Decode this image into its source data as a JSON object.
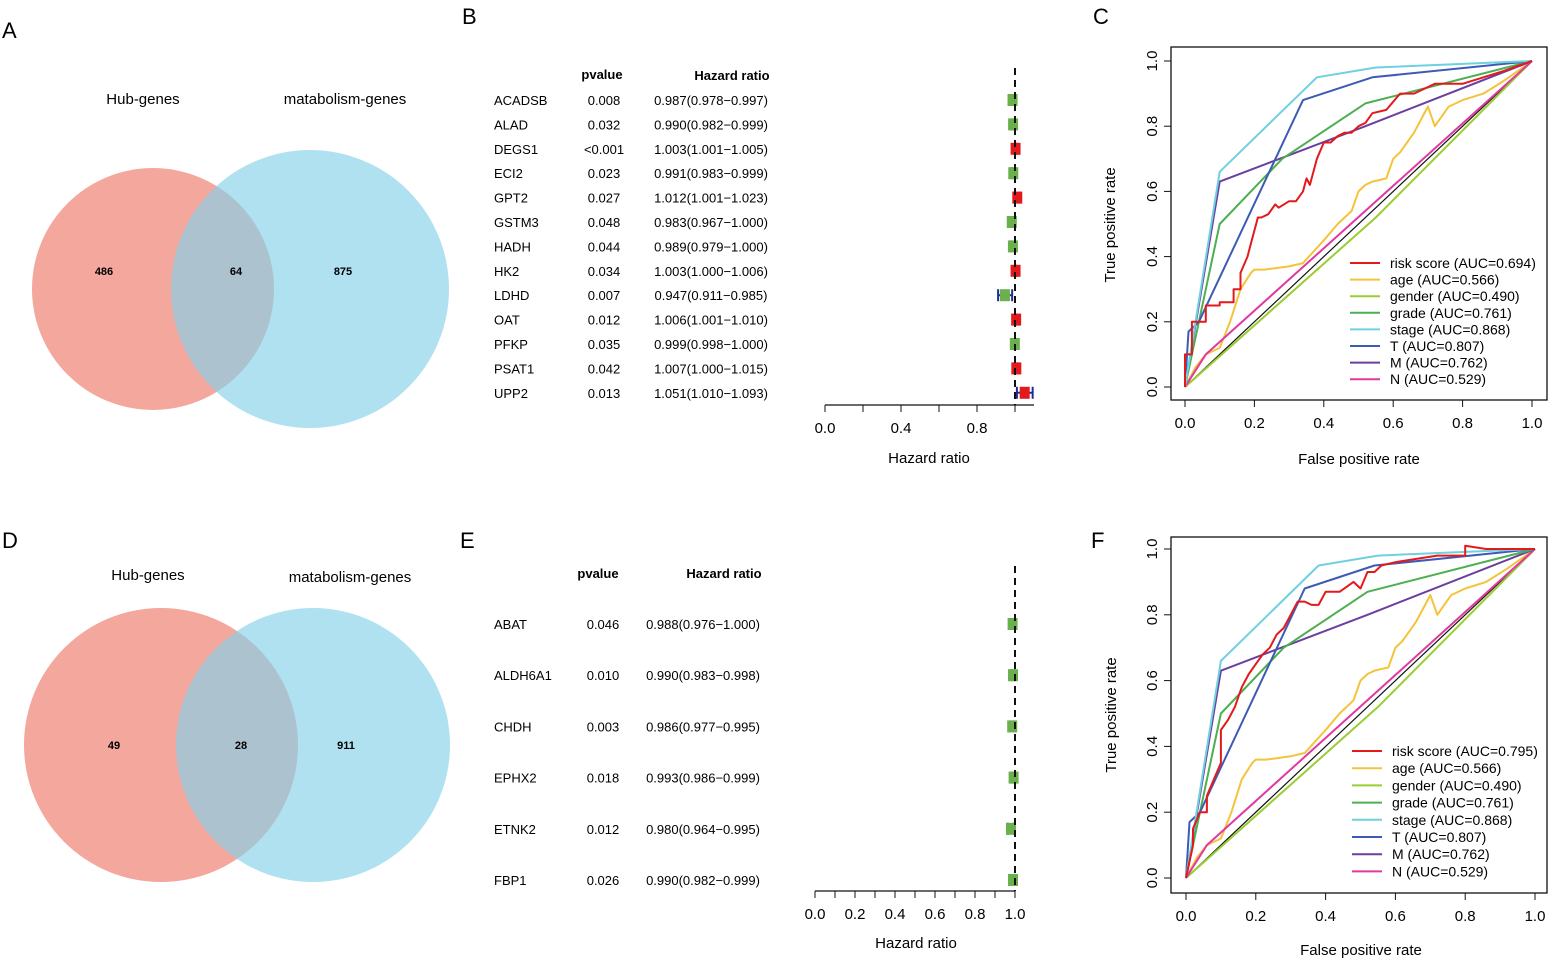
{
  "colors": {
    "venn_left": "#f08a7c",
    "venn_right": "#85d1e8",
    "protective": "#6ab04c",
    "risk": "#e31a1c",
    "ci_line": "#1f2f8f",
    "roc_risk": "#e31a1c",
    "roc_age": "#f5c33b",
    "roc_gender": "#9acd32",
    "roc_grade": "#4caf50",
    "roc_stage": "#6fd0e0",
    "roc_T": "#3d5bb5",
    "roc_M": "#6a3fa0",
    "roc_N": "#e03aa0"
  },
  "chart_data": [
    {
      "panel": "A",
      "type": "venn",
      "sets": [
        "Hub-genes",
        "matabolism-genes"
      ],
      "left_only": "486",
      "overlap": "64",
      "right_only": "875"
    },
    {
      "panel": "B",
      "type": "forest",
      "col_pvalue": "pvalue",
      "col_hr": "Hazard ratio",
      "xlabel": "Hazard ratio",
      "xlim": [
        0,
        1.1
      ],
      "ref_line": 1,
      "ticks": [
        "0.0",
        "0.4",
        "0.8"
      ],
      "tick_values": [
        0,
        0.4,
        0.8
      ],
      "rows": [
        {
          "gene": "ACADSB",
          "pvalue": "0.008",
          "hr_text": "0.987(0.978−0.997)",
          "hr": 0.987,
          "lo": 0.978,
          "hi": 0.997
        },
        {
          "gene": "ALAD",
          "pvalue": "0.032",
          "hr_text": "0.990(0.982−0.999)",
          "hr": 0.99,
          "lo": 0.982,
          "hi": 0.999
        },
        {
          "gene": "DEGS1",
          "pvalue": "<0.001",
          "hr_text": "1.003(1.001−1.005)",
          "hr": 1.003,
          "lo": 1.001,
          "hi": 1.005
        },
        {
          "gene": "ECI2",
          "pvalue": "0.023",
          "hr_text": "0.991(0.983−0.999)",
          "hr": 0.991,
          "lo": 0.983,
          "hi": 0.999
        },
        {
          "gene": "GPT2",
          "pvalue": "0.027",
          "hr_text": "1.012(1.001−1.023)",
          "hr": 1.012,
          "lo": 1.001,
          "hi": 1.023
        },
        {
          "gene": "GSTM3",
          "pvalue": "0.048",
          "hr_text": "0.983(0.967−1.000)",
          "hr": 0.983,
          "lo": 0.967,
          "hi": 1.0
        },
        {
          "gene": "HADH",
          "pvalue": "0.044",
          "hr_text": "0.989(0.979−1.000)",
          "hr": 0.989,
          "lo": 0.979,
          "hi": 1.0
        },
        {
          "gene": "HK2",
          "pvalue": "0.034",
          "hr_text": "1.003(1.000−1.006)",
          "hr": 1.003,
          "lo": 1.0,
          "hi": 1.006
        },
        {
          "gene": "LDHD",
          "pvalue": "0.007",
          "hr_text": "0.947(0.911−0.985)",
          "hr": 0.947,
          "lo": 0.911,
          "hi": 0.985
        },
        {
          "gene": "OAT",
          "pvalue": "0.012",
          "hr_text": "1.006(1.001−1.010)",
          "hr": 1.006,
          "lo": 1.001,
          "hi": 1.01
        },
        {
          "gene": "PFKP",
          "pvalue": "0.035",
          "hr_text": "0.999(0.998−1.000)",
          "hr": 0.999,
          "lo": 0.998,
          "hi": 1.0
        },
        {
          "gene": "PSAT1",
          "pvalue": "0.042",
          "hr_text": "1.007(1.000−1.015)",
          "hr": 1.007,
          "lo": 1.0,
          "hi": 1.015
        },
        {
          "gene": "UPP2",
          "pvalue": "0.013",
          "hr_text": "1.051(1.010−1.093)",
          "hr": 1.051,
          "lo": 1.01,
          "hi": 1.093
        }
      ]
    },
    {
      "panel": "C",
      "type": "line",
      "xlabel": "False positive rate",
      "ylabel": "True positive rate",
      "xlim": [
        0,
        1
      ],
      "ylim": [
        0,
        1
      ],
      "ticks": [
        "0.0",
        "0.2",
        "0.4",
        "0.6",
        "0.8",
        "1.0"
      ],
      "tick_values": [
        0,
        0.2,
        0.4,
        0.6,
        0.8,
        1.0
      ],
      "series": [
        {
          "key": "risk",
          "name": "risk score (AUC=0.694)",
          "x": [
            0,
            0,
            0.02,
            0.02,
            0.06,
            0.06,
            0.1,
            0.1,
            0.14,
            0.14,
            0.16,
            0.16,
            0.18,
            0.19,
            0.2,
            0.21,
            0.22,
            0.24,
            0.26,
            0.27,
            0.3,
            0.32,
            0.34,
            0.35,
            0.36,
            0.38,
            0.4,
            0.42,
            0.44,
            0.46,
            0.48,
            0.5,
            0.52,
            0.54,
            0.58,
            0.62,
            0.66,
            0.72,
            0.8,
            0.92,
            1.0
          ],
          "y": [
            0,
            0.1,
            0.1,
            0.2,
            0.2,
            0.25,
            0.25,
            0.26,
            0.26,
            0.3,
            0.3,
            0.35,
            0.4,
            0.44,
            0.48,
            0.52,
            0.52,
            0.53,
            0.56,
            0.55,
            0.57,
            0.57,
            0.6,
            0.64,
            0.62,
            0.7,
            0.75,
            0.75,
            0.77,
            0.78,
            0.78,
            0.8,
            0.81,
            0.84,
            0.85,
            0.9,
            0.9,
            0.93,
            0.93,
            0.97,
            1.0
          ]
        },
        {
          "key": "age",
          "name": "age (AUC=0.566)",
          "x": [
            0,
            0.03,
            0.06,
            0.1,
            0.13,
            0.16,
            0.19,
            0.2,
            0.23,
            0.3,
            0.34,
            0.4,
            0.44,
            0.48,
            0.5,
            0.52,
            0.54,
            0.58,
            0.6,
            0.62,
            0.66,
            0.7,
            0.72,
            0.76,
            0.8,
            0.86,
            0.92,
            1.0
          ],
          "y": [
            0,
            0.06,
            0.1,
            0.12,
            0.2,
            0.3,
            0.35,
            0.36,
            0.36,
            0.37,
            0.38,
            0.45,
            0.5,
            0.54,
            0.6,
            0.62,
            0.63,
            0.64,
            0.7,
            0.72,
            0.78,
            0.86,
            0.8,
            0.86,
            0.88,
            0.9,
            0.94,
            1.0
          ]
        },
        {
          "key": "gender",
          "name": "gender (AUC=0.490)",
          "x": [
            0,
            0.55,
            1.0
          ],
          "y": [
            0,
            0.52,
            1.0
          ]
        },
        {
          "key": "grade",
          "name": "grade (AUC=0.761)",
          "x": [
            0,
            0.1,
            0.28,
            0.52,
            1.0
          ],
          "y": [
            0,
            0.5,
            0.7,
            0.87,
            1.0
          ]
        },
        {
          "key": "stage",
          "name": "stage (AUC=0.868)",
          "x": [
            0,
            0.1,
            0.38,
            0.55,
            1.0
          ],
          "y": [
            0,
            0.66,
            0.95,
            0.98,
            1.0
          ]
        },
        {
          "key": "T",
          "name": "T (AUC=0.807)",
          "x": [
            0,
            0.01,
            0.04,
            0.34,
            0.54,
            1.0
          ],
          "y": [
            0,
            0.17,
            0.2,
            0.88,
            0.95,
            1.0
          ]
        },
        {
          "key": "M",
          "name": "M (AUC=0.762)",
          "x": [
            0,
            0.1,
            0.52,
            1.0
          ],
          "y": [
            0,
            0.63,
            0.8,
            1.0
          ]
        },
        {
          "key": "N",
          "name": "N (AUC=0.529)",
          "x": [
            0,
            0.06,
            1.0
          ],
          "y": [
            0,
            0.1,
            1.0
          ]
        }
      ]
    },
    {
      "panel": "D",
      "type": "venn",
      "sets": [
        "Hub-genes",
        "matabolism-genes"
      ],
      "left_only": "49",
      "overlap": "28",
      "right_only": "911"
    },
    {
      "panel": "E",
      "type": "forest",
      "col_pvalue": "pvalue",
      "col_hr": "Hazard ratio",
      "xlabel": "Hazard ratio",
      "xlim": [
        0,
        1
      ],
      "ref_line": 1,
      "ticks": [
        "0.0",
        "0.2",
        "0.4",
        "0.6",
        "0.8",
        "1.0"
      ],
      "tick_values": [
        0,
        0.2,
        0.4,
        0.6,
        0.8,
        1.0
      ],
      "rows": [
        {
          "gene": "ABAT",
          "pvalue": "0.046",
          "hr_text": "0.988(0.976−1.000)",
          "hr": 0.988,
          "lo": 0.976,
          "hi": 1.0
        },
        {
          "gene": "ALDH6A1",
          "pvalue": "0.010",
          "hr_text": "0.990(0.983−0.998)",
          "hr": 0.99,
          "lo": 0.983,
          "hi": 0.998
        },
        {
          "gene": "CHDH",
          "pvalue": "0.003",
          "hr_text": "0.986(0.977−0.995)",
          "hr": 0.986,
          "lo": 0.977,
          "hi": 0.995
        },
        {
          "gene": "EPHX2",
          "pvalue": "0.018",
          "hr_text": "0.993(0.986−0.999)",
          "hr": 0.993,
          "lo": 0.986,
          "hi": 0.999
        },
        {
          "gene": "ETNK2",
          "pvalue": "0.012",
          "hr_text": "0.980(0.964−0.995)",
          "hr": 0.98,
          "lo": 0.964,
          "hi": 0.995
        },
        {
          "gene": "FBP1",
          "pvalue": "0.026",
          "hr_text": "0.990(0.982−0.999)",
          "hr": 0.99,
          "lo": 0.982,
          "hi": 0.999
        }
      ]
    },
    {
      "panel": "F",
      "type": "line",
      "xlabel": "False positive rate",
      "ylabel": "True positive rate",
      "xlim": [
        0,
        1
      ],
      "ylim": [
        0,
        1
      ],
      "ticks": [
        "0.0",
        "0.2",
        "0.4",
        "0.6",
        "0.8",
        "1.0"
      ],
      "tick_values": [
        0,
        0.2,
        0.4,
        0.6,
        0.8,
        1.0
      ],
      "series": [
        {
          "key": "risk",
          "name": "risk score (AUC=0.795)",
          "x": [
            0,
            0.02,
            0.02,
            0.04,
            0.06,
            0.06,
            0.08,
            0.1,
            0.1,
            0.12,
            0.13,
            0.14,
            0.15,
            0.16,
            0.18,
            0.2,
            0.22,
            0.24,
            0.26,
            0.28,
            0.3,
            0.32,
            0.34,
            0.36,
            0.38,
            0.4,
            0.44,
            0.48,
            0.5,
            0.52,
            0.54,
            0.56,
            0.6,
            0.66,
            0.72,
            0.8,
            0.8,
            0.86,
            0.92,
            1.0
          ],
          "y": [
            0,
            0.1,
            0.15,
            0.2,
            0.2,
            0.25,
            0.3,
            0.35,
            0.45,
            0.48,
            0.5,
            0.52,
            0.55,
            0.58,
            0.62,
            0.65,
            0.68,
            0.7,
            0.74,
            0.76,
            0.8,
            0.84,
            0.84,
            0.83,
            0.83,
            0.87,
            0.87,
            0.9,
            0.88,
            0.93,
            0.93,
            0.95,
            0.96,
            0.97,
            0.98,
            0.98,
            1.01,
            1.0,
            1.0,
            1.0
          ]
        },
        {
          "key": "age",
          "name": "age (AUC=0.566)",
          "x": [
            0,
            0.03,
            0.06,
            0.1,
            0.13,
            0.16,
            0.19,
            0.2,
            0.23,
            0.3,
            0.34,
            0.4,
            0.44,
            0.48,
            0.5,
            0.52,
            0.54,
            0.58,
            0.6,
            0.62,
            0.66,
            0.7,
            0.72,
            0.76,
            0.8,
            0.86,
            0.92,
            1.0
          ],
          "y": [
            0,
            0.06,
            0.1,
            0.12,
            0.2,
            0.3,
            0.35,
            0.36,
            0.36,
            0.37,
            0.38,
            0.45,
            0.5,
            0.54,
            0.6,
            0.62,
            0.63,
            0.64,
            0.7,
            0.72,
            0.78,
            0.86,
            0.8,
            0.86,
            0.88,
            0.9,
            0.94,
            1.0
          ]
        },
        {
          "key": "gender",
          "name": "gender (AUC=0.490)",
          "x": [
            0,
            0.55,
            1.0
          ],
          "y": [
            0,
            0.52,
            1.0
          ]
        },
        {
          "key": "grade",
          "name": "grade (AUC=0.761)",
          "x": [
            0,
            0.1,
            0.28,
            0.52,
            1.0
          ],
          "y": [
            0,
            0.5,
            0.7,
            0.87,
            1.0
          ]
        },
        {
          "key": "stage",
          "name": "stage (AUC=0.868)",
          "x": [
            0,
            0.1,
            0.38,
            0.55,
            1.0
          ],
          "y": [
            0,
            0.66,
            0.95,
            0.98,
            1.0
          ]
        },
        {
          "key": "T",
          "name": "T (AUC=0.807)",
          "x": [
            0,
            0.01,
            0.04,
            0.34,
            0.54,
            1.0
          ],
          "y": [
            0,
            0.17,
            0.2,
            0.88,
            0.95,
            1.0
          ]
        },
        {
          "key": "M",
          "name": "M (AUC=0.762)",
          "x": [
            0,
            0.1,
            0.52,
            1.0
          ],
          "y": [
            0,
            0.63,
            0.8,
            1.0
          ]
        },
        {
          "key": "N",
          "name": "N (AUC=0.529)",
          "x": [
            0,
            0.06,
            1.0
          ],
          "y": [
            0,
            0.1,
            1.0
          ]
        }
      ]
    }
  ]
}
